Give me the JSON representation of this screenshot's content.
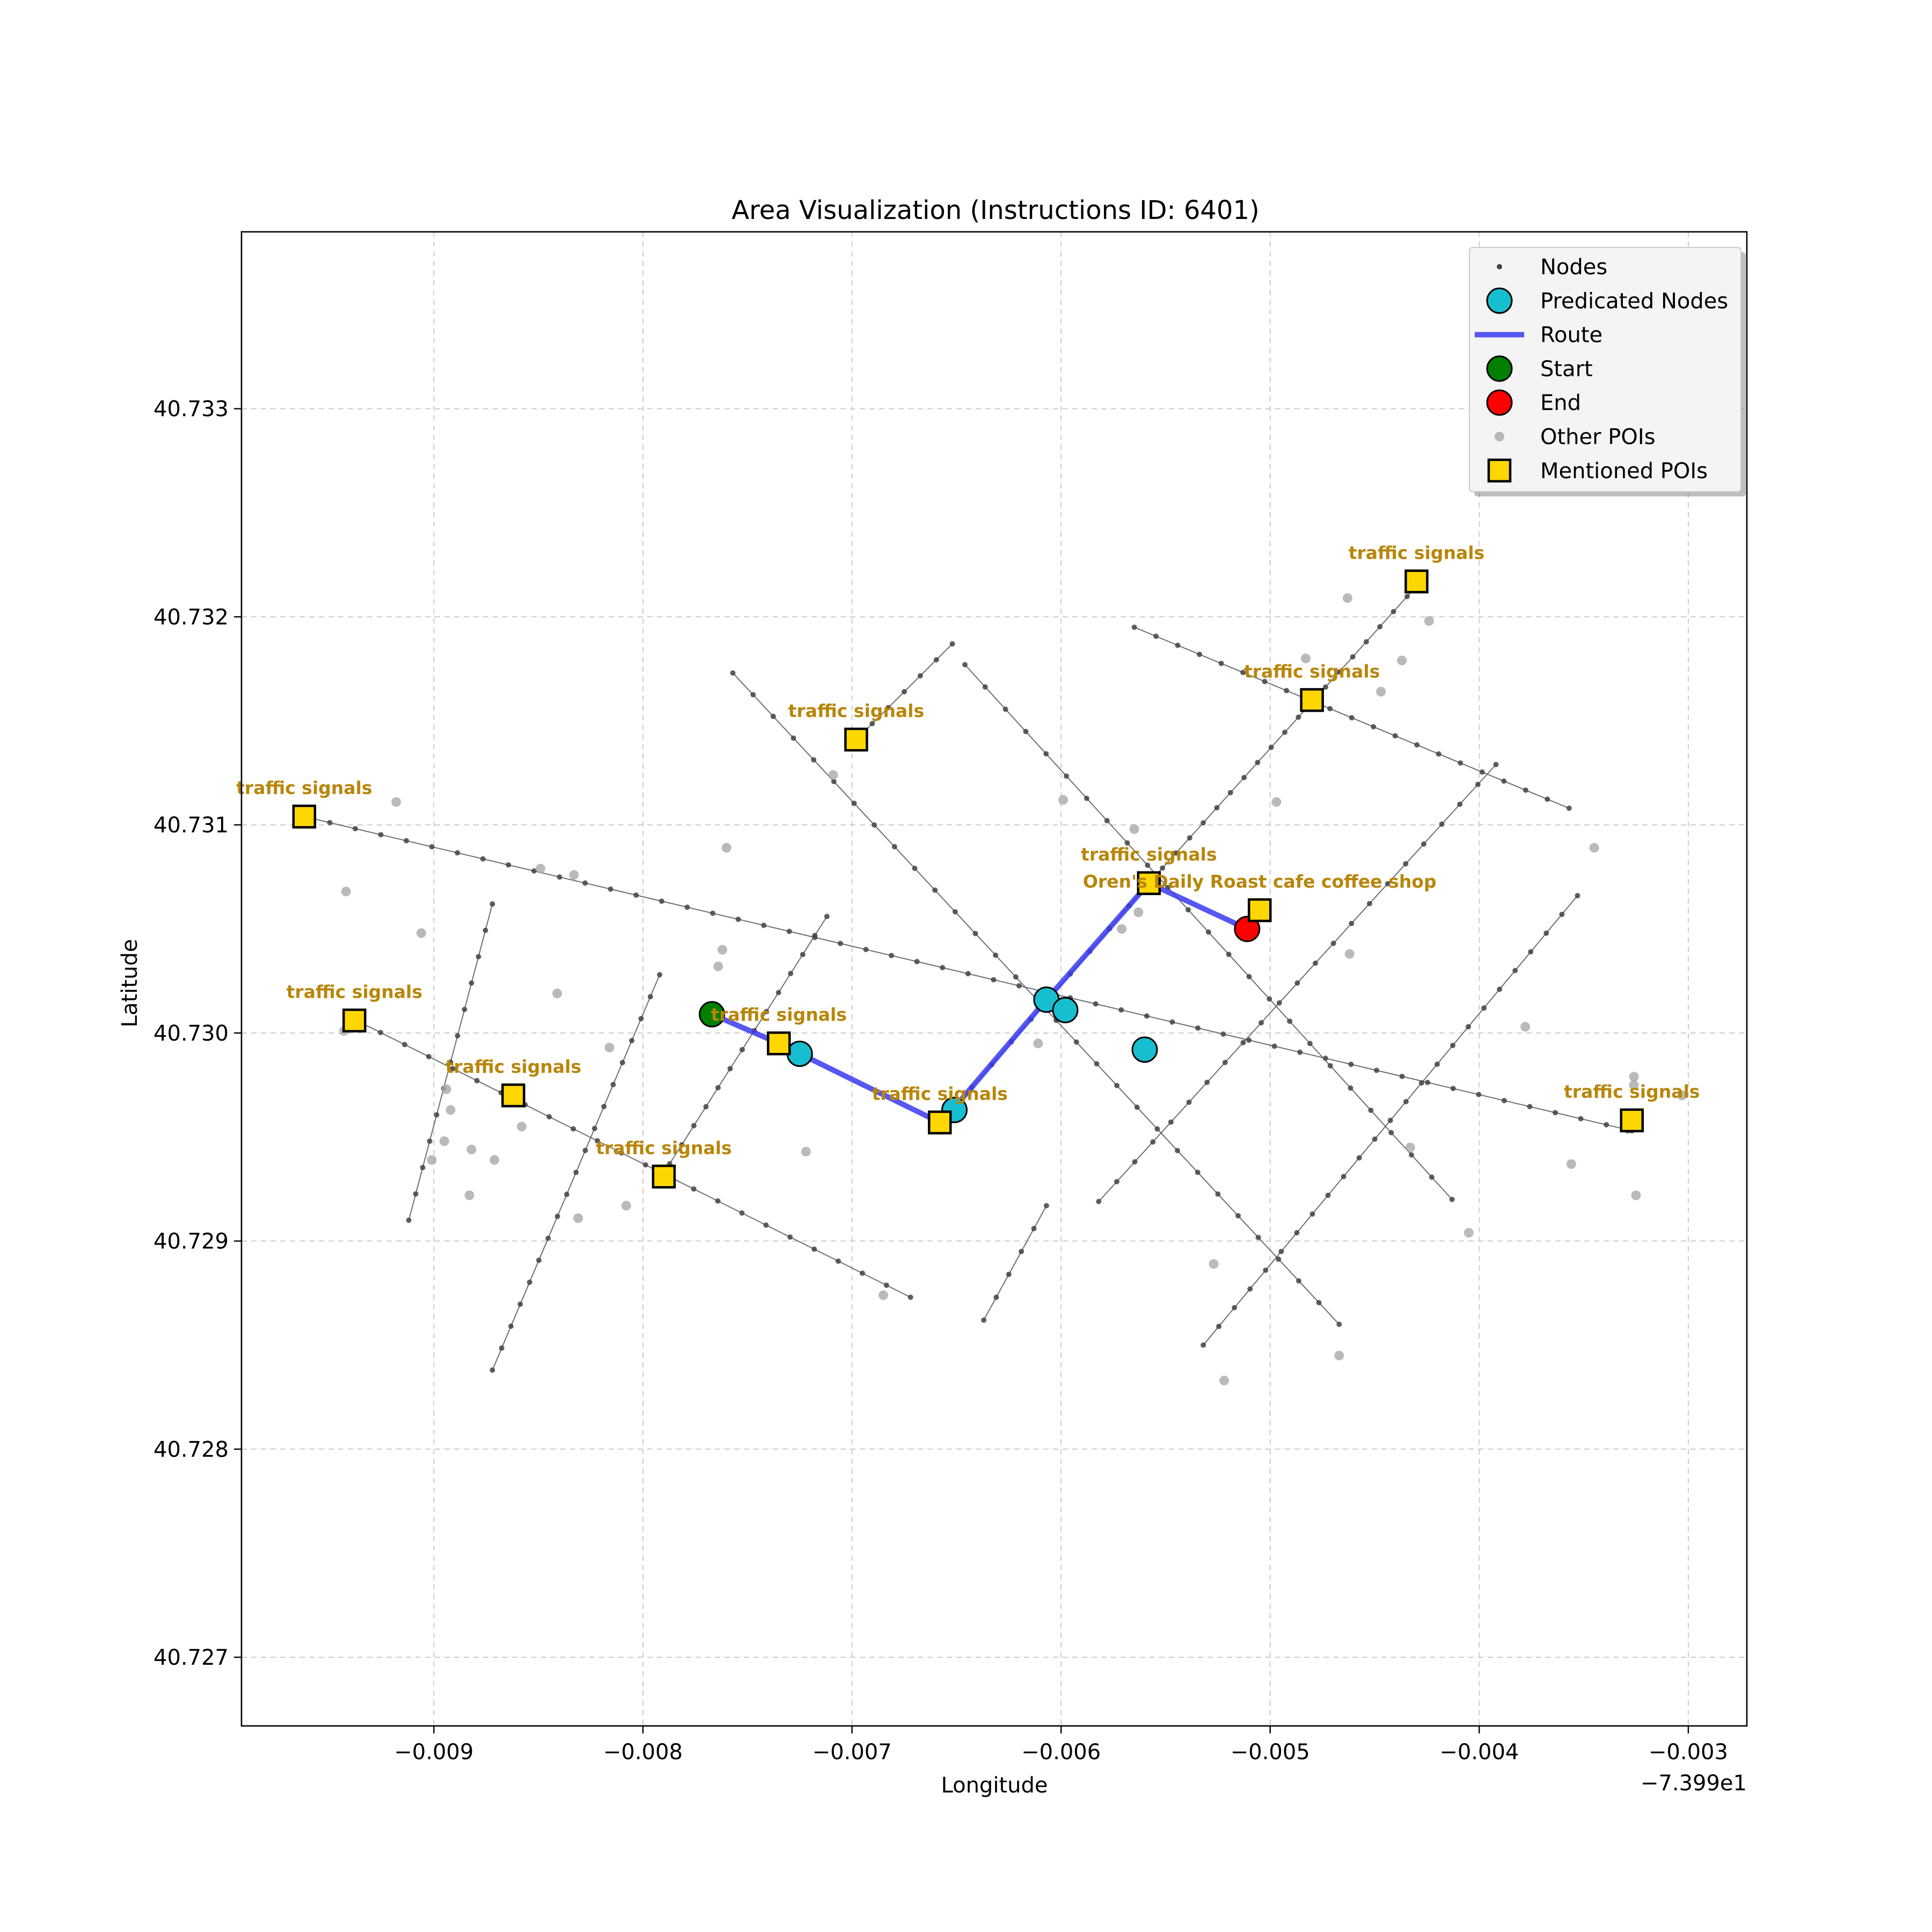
{
  "chart_data": {
    "type": "scatter",
    "title": "Area Visualization (Instructions ID: 6401)",
    "xlabel": "Longitude",
    "ylabel": "Latitude",
    "x_offset_label": "−7.399e1",
    "xlim": [
      -0.00992,
      -0.00272
    ],
    "ylim": [
      40.72667,
      40.73385
    ],
    "xticks": [
      -0.009,
      -0.008,
      -0.007,
      -0.006,
      -0.005,
      -0.004,
      -0.003
    ],
    "xtick_labels": [
      "−0.009",
      "−0.008",
      "−0.007",
      "−0.006",
      "−0.005",
      "−0.004",
      "−0.003"
    ],
    "yticks": [
      40.727,
      40.728,
      40.729,
      40.73,
      40.731,
      40.732,
      40.733
    ],
    "ytick_labels": [
      "40.727",
      "40.728",
      "40.729",
      "40.730",
      "40.731",
      "40.732",
      "40.733"
    ],
    "grid": true,
    "legend_position": "top-right",
    "legend": [
      {
        "label": "Nodes",
        "marker": "small-dot",
        "color": "#444444"
      },
      {
        "label": "Predicated Nodes",
        "marker": "circle",
        "color": "#17BECF"
      },
      {
        "label": "Route",
        "marker": "line",
        "color": "#3A3AF0"
      },
      {
        "label": "Start",
        "marker": "circle",
        "color": "#007F00"
      },
      {
        "label": "End",
        "marker": "circle",
        "color": "#FF0000"
      },
      {
        "label": "Other POIs",
        "marker": "small-circle",
        "color": "#A9A9A9"
      },
      {
        "label": "Mentioned POIs",
        "marker": "square",
        "color": "#FFD700"
      }
    ],
    "colors": {
      "node": "#444444",
      "street": "#555555",
      "predicted": "#17BECF",
      "route": "#3A3AF0",
      "start": "#007F00",
      "end": "#FF0000",
      "other_poi": "#A9A9A9",
      "mentioned_poi": "#FFD700",
      "poi_label": "#B8860B",
      "grid": "#CCCCCC"
    },
    "streets": [
      {
        "from": [
          -0.00962,
          40.73104
        ],
        "to": [
          -0.00327,
          40.72953
        ],
        "dots": 52
      },
      {
        "from": [
          -0.00937,
          40.73006
        ],
        "to": [
          -0.00672,
          40.72873
        ],
        "dots": 23
      },
      {
        "from": [
          -0.00757,
          40.73173
        ],
        "to": [
          -0.00467,
          40.7286
        ],
        "dots": 30
      },
      {
        "from": [
          -0.00646,
          40.73177
        ],
        "to": [
          -0.00413,
          40.7292
        ],
        "dots": 24
      },
      {
        "from": [
          -0.00565,
          40.73195
        ],
        "to": [
          -0.00357,
          40.73108
        ],
        "dots": 20
      },
      {
        "from": [
          -0.00912,
          40.7291
        ],
        "to": [
          -0.00872,
          40.73062
        ],
        "dots": 12
      },
      {
        "from": [
          -0.00872,
          40.72838
        ],
        "to": [
          -0.00792,
          40.73028
        ],
        "dots": 18
      },
      {
        "from": [
          -0.00793,
          40.72928
        ],
        "to": [
          -0.00712,
          40.73056
        ],
        "dots": 14
      },
      {
        "from": [
          -0.00637,
          40.72862
        ],
        "to": [
          -0.00607,
          40.72917
        ],
        "dots": 5
      },
      {
        "from": [
          -0.00698,
          40.73141
        ],
        "to": [
          -0.00652,
          40.73187
        ],
        "dots": 6
      },
      {
        "from": [
          -0.00652,
          40.72963
        ],
        "to": [
          -0.00558,
          40.73072
        ],
        "dots": 10
      },
      {
        "from": [
          -0.00558,
          40.73072
        ],
        "to": [
          -0.00428,
          40.73217
        ],
        "dots": 20
      },
      {
        "from": [
          -0.00582,
          40.72919
        ],
        "to": [
          -0.00392,
          40.73129
        ],
        "dots": 22
      },
      {
        "from": [
          -0.00532,
          40.7285
        ],
        "to": [
          -0.00353,
          40.73066
        ],
        "dots": 24
      },
      {
        "from": [
          -0.00329,
          40.72953
        ],
        "to": [
          -0.00327,
          40.72958
        ],
        "dots": 1
      }
    ],
    "other_pois": [
      [
        -0.00918,
        40.73111
      ],
      [
        -0.00942,
        40.73068
      ],
      [
        -0.00906,
        40.73048
      ],
      [
        -0.00849,
        40.73079
      ],
      [
        -0.00833,
        40.73076
      ],
      [
        -0.00841,
        40.73019
      ],
      [
        -0.00943,
        40.73001
      ],
      [
        -0.00894,
        40.72973
      ],
      [
        -0.00892,
        40.72963
      ],
      [
        -0.00858,
        40.72955
      ],
      [
        -0.00895,
        40.72948
      ],
      [
        -0.00882,
        40.72944
      ],
      [
        -0.00901,
        40.72939
      ],
      [
        -0.00871,
        40.72939
      ],
      [
        -0.00883,
        40.72922
      ],
      [
        -0.00816,
        40.72993
      ],
      [
        -0.00808,
        40.72917
      ],
      [
        -0.00831,
        40.72911
      ],
      [
        -0.0076,
        40.73089
      ],
      [
        -0.00762,
        40.7304
      ],
      [
        -0.00764,
        40.73032
      ],
      [
        -0.00709,
        40.73124
      ],
      [
        -0.00722,
        40.72943
      ],
      [
        -0.00685,
        40.72874
      ],
      [
        -0.00599,
        40.73112
      ],
      [
        -0.00565,
        40.73098
      ],
      [
        -0.00563,
        40.73058
      ],
      [
        -0.00571,
        40.7305
      ],
      [
        -0.00611,
        40.72995
      ],
      [
        -0.00483,
        40.7318
      ],
      [
        -0.00463,
        40.73209
      ],
      [
        -0.00437,
        40.73179
      ],
      [
        -0.00424,
        40.73198
      ],
      [
        -0.00447,
        40.73164
      ],
      [
        -0.00497,
        40.73111
      ],
      [
        -0.00462,
        40.73038
      ],
      [
        -0.00345,
        40.73089
      ],
      [
        -0.00378,
        40.73003
      ],
      [
        -0.00326,
        40.72979
      ],
      [
        -0.00326,
        40.72975
      ],
      [
        -0.00303,
        40.7297
      ],
      [
        -0.00356,
        40.72937
      ],
      [
        -0.00325,
        40.72922
      ],
      [
        -0.00433,
        40.72945
      ],
      [
        -0.00405,
        40.72904
      ],
      [
        -0.00527,
        40.72889
      ],
      [
        -0.00522,
        40.72833
      ],
      [
        -0.00467,
        40.72845
      ]
    ],
    "route": [
      [
        -0.00767,
        40.73009
      ],
      [
        -0.00735,
        40.72995
      ],
      [
        -0.00658,
        40.72957
      ],
      [
        -0.00652,
        40.72963
      ],
      [
        -0.00607,
        40.73016
      ],
      [
        -0.00558,
        40.73072
      ],
      [
        -0.00511,
        40.7305
      ]
    ],
    "predicted_nodes": [
      [
        -0.00725,
        40.7299
      ],
      [
        -0.00651,
        40.72963
      ],
      [
        -0.00607,
        40.73016
      ],
      [
        -0.00598,
        40.73011
      ],
      [
        -0.0056,
        40.72992
      ]
    ],
    "start": [
      -0.00767,
      40.73009
    ],
    "end": [
      -0.00511,
      40.7305
    ],
    "mentioned_pois": [
      {
        "lon": -0.00962,
        "lat": 40.73104,
        "label": "traffic signals"
      },
      {
        "lon": -0.00938,
        "lat": 40.73006,
        "label": "traffic signals"
      },
      {
        "lon": -0.00862,
        "lat": 40.7297,
        "label": "traffic signals"
      },
      {
        "lon": -0.0079,
        "lat": 40.72931,
        "label": "traffic signals"
      },
      {
        "lon": -0.00735,
        "lat": 40.72995,
        "label": "traffic signals"
      },
      {
        "lon": -0.00698,
        "lat": 40.73141,
        "label": "traffic signals"
      },
      {
        "lon": -0.00658,
        "lat": 40.72957,
        "label": "traffic signals"
      },
      {
        "lon": -0.00558,
        "lat": 40.73072,
        "label": "traffic signals"
      },
      {
        "lon": -0.00505,
        "lat": 40.73059,
        "label": "Oren's Daily Roast cafe coffee shop"
      },
      {
        "lon": -0.0048,
        "lat": 40.7316,
        "label": "traffic signals"
      },
      {
        "lon": -0.0043,
        "lat": 40.73217,
        "label": "traffic signals"
      },
      {
        "lon": -0.00327,
        "lat": 40.72958,
        "label": "traffic signals"
      }
    ]
  }
}
